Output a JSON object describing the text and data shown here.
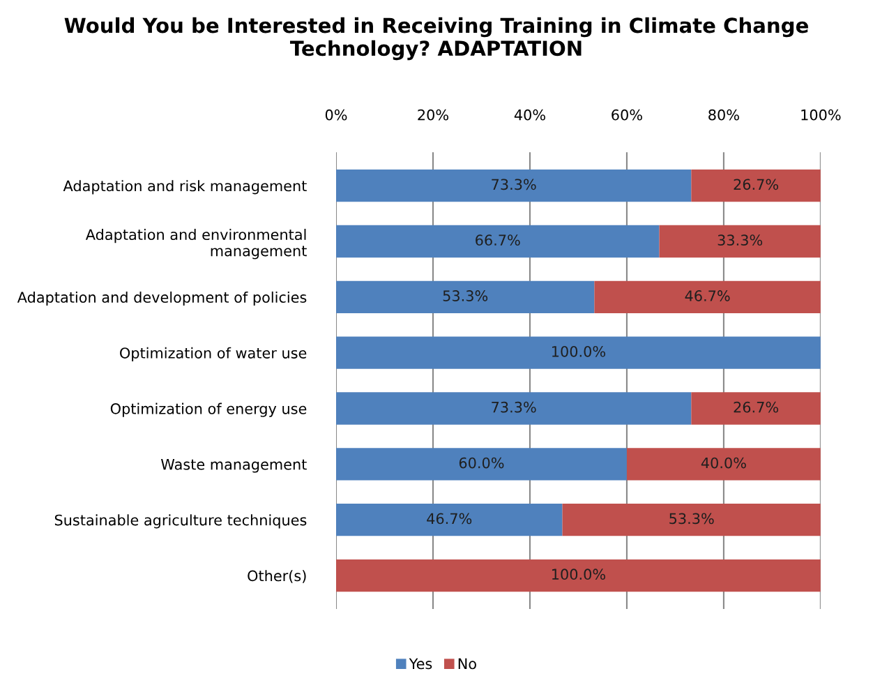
{
  "chart_data": {
    "type": "bar",
    "orientation": "horizontal",
    "stacked": true,
    "title": "Would You be Interested in Receiving Training in Climate Change Technology? ADAPTATION",
    "categories": [
      "Adaptation and risk management",
      "Adaptation and environmental\nmanagement",
      "Adaptation and development of policies",
      "Optimization of water use",
      "Optimization of energy use",
      "Waste management",
      "Sustainable agriculture techniques",
      "Other(s)"
    ],
    "series": [
      {
        "name": "Yes",
        "color": "#4f81bd",
        "values": [
          73.3,
          66.7,
          53.3,
          100.0,
          73.3,
          60.0,
          46.7,
          0
        ],
        "value_labels": [
          "73.3%",
          "66.7%",
          "53.3%",
          "100.0%",
          "73.3%",
          "60.0%",
          "46.7%",
          null
        ]
      },
      {
        "name": "No",
        "color": "#c0504d",
        "values": [
          26.7,
          33.3,
          46.7,
          0,
          26.7,
          40.0,
          53.3,
          100.0
        ],
        "value_labels": [
          "26.7%",
          "33.3%",
          "46.7%",
          null,
          "26.7%",
          "40.0%",
          "53.3%",
          "100.0%"
        ]
      }
    ],
    "xlim": [
      0,
      100
    ],
    "xticks": [
      {
        "value": 0,
        "label": "0%"
      },
      {
        "value": 20,
        "label": "20%"
      },
      {
        "value": 40,
        "label": "40%"
      },
      {
        "value": 60,
        "label": "60%"
      },
      {
        "value": 80,
        "label": "80%"
      },
      {
        "value": 100,
        "label": "100%"
      }
    ],
    "grid": "x",
    "legend": "bottom"
  }
}
